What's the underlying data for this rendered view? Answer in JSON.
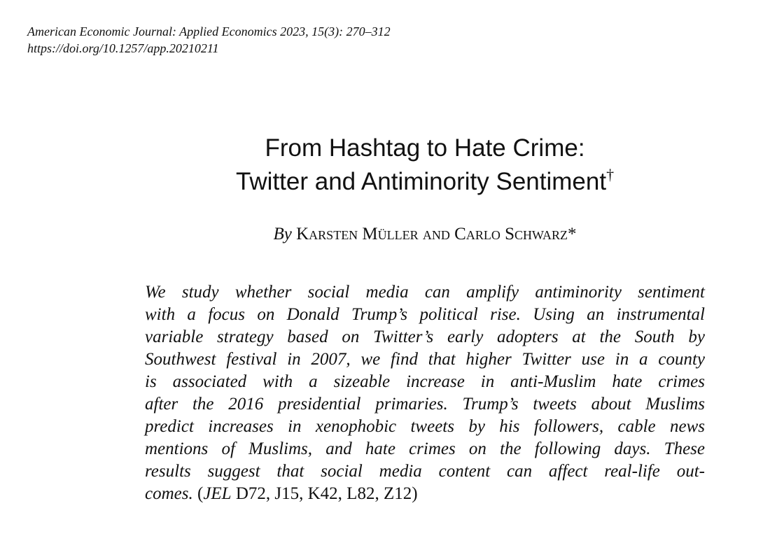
{
  "journal": {
    "citation": "American Economic Journal: Applied Economics 2023, 15(3): 270–312",
    "doi": "https://doi.org/10.1257/app.20210211"
  },
  "title": {
    "line1": "From Hashtag to Hate Crime:",
    "line2": "Twitter and Antiminority Sentiment",
    "dagger": "†"
  },
  "byline": {
    "by": "By",
    "author1": "Karsten Müller",
    "conjunction": "and",
    "author2": "Carlo Schwarz",
    "marker": "*"
  },
  "abstract": {
    "lines": [
      "We study whether social media can amplify antiminority sentiment",
      "with a focus on Donald Trump’s political rise. Using an instrumental",
      "variable strategy based on Twitter’s early adopters at the South by",
      "Southwest festival in 2007, we find that higher Twitter use in a county",
      "is associated with a sizeable increase in anti-Muslim hate crimes",
      "after the 2016 presidential primaries. Trump’s tweets about Muslims",
      "predict increases in xenophobic tweets by his followers, cable news",
      "mentions of Muslims, and hate crimes on the following days. These",
      "results suggest that social media content can affect real-life out-"
    ],
    "last_line_italic": "comes.",
    "jel_open": "(",
    "jel_label": "JEL",
    "jel_codes": "D72, J15, K42, L82, Z12)"
  }
}
